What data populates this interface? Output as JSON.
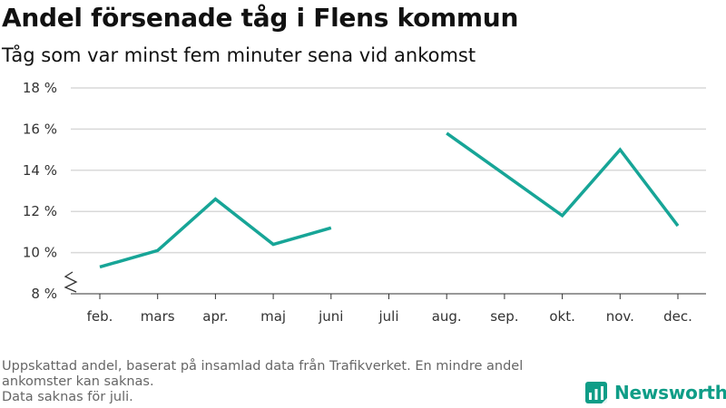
{
  "title": "Andel försenade tåg i Flens kommun",
  "subtitle": "Tåg som var minst fem minuter sena vid ankomst",
  "footnote": [
    "Uppskattad andel, baserat på insamlad data från Trafikverket. En mindre andel ankomster kan saknas.",
    "Data saknas för juli."
  ],
  "brand": {
    "name": "Newsworthy",
    "logo_icon": "bar-chart-logo-icon"
  },
  "colors": {
    "line": "#17a597",
    "grid": "#d9d9d9",
    "axis": "#333333",
    "brand": "#0f9d87"
  },
  "chart_data": {
    "type": "line",
    "title": "Andel försenade tåg i Flens kommun",
    "subtitle": "Tåg som var minst fem minuter sena vid ankomst",
    "categories": [
      "feb.",
      "mars",
      "apr.",
      "maj",
      "juni",
      "juli",
      "aug.",
      "sep.",
      "okt.",
      "nov.",
      "dec."
    ],
    "series": [
      {
        "values": [
          9.3,
          10.1,
          12.6,
          10.4,
          11.2,
          null,
          15.8,
          13.8,
          11.8,
          15.0,
          11.3
        ]
      }
    ],
    "y_ticks": [
      8,
      10,
      12,
      14,
      16,
      18
    ],
    "y_tick_labels": [
      "8 %",
      "10 %",
      "12 %",
      "14 %",
      "16 %",
      "18 %"
    ],
    "ylim": [
      8,
      18
    ],
    "y_axis_break": true,
    "grid": "horizontal",
    "xlabel": "",
    "ylabel": ""
  }
}
